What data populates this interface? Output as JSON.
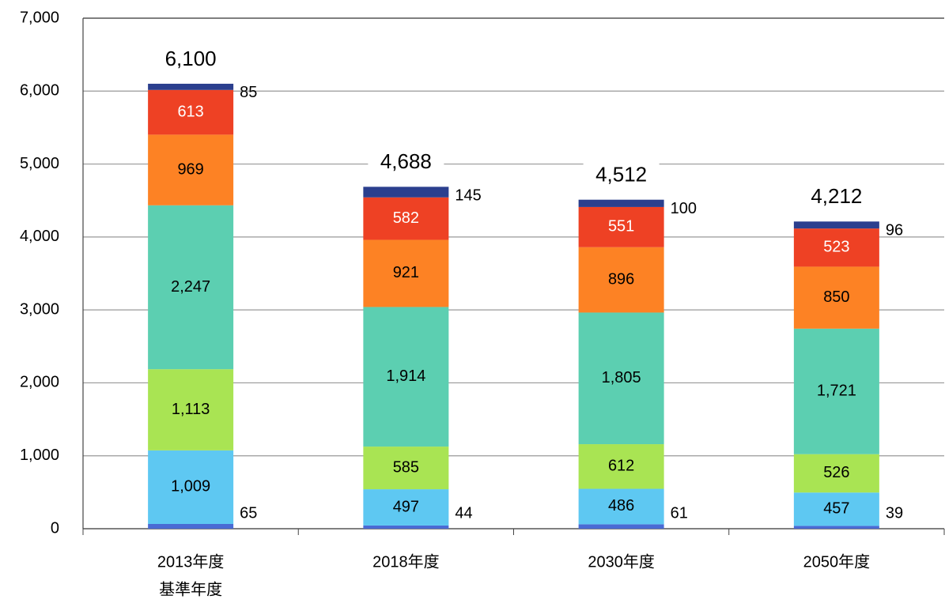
{
  "chart_data": {
    "type": "stacked-bar",
    "categories": [
      "2013年度",
      "2018年度",
      "2030年度",
      "2050年度"
    ],
    "category_sublabels": [
      "基準年度",
      null,
      null,
      null
    ],
    "series": [
      {
        "color": "#4a6bd4",
        "label_color": "#000000",
        "label_position": "outside-bottom",
        "values": [
          65,
          44,
          61,
          39
        ],
        "value_labels": [
          "65",
          "44",
          "61",
          "39"
        ]
      },
      {
        "color": "#5ec8f2",
        "label_color": "#000000",
        "label_position": "inside",
        "values": [
          1009,
          497,
          486,
          457
        ],
        "value_labels": [
          "1,009",
          "497",
          "486",
          "457"
        ]
      },
      {
        "color": "#a9e453",
        "label_color": "#000000",
        "label_position": "inside",
        "values": [
          1113,
          585,
          612,
          526
        ],
        "value_labels": [
          "1,113",
          "585",
          "612",
          "526"
        ]
      },
      {
        "color": "#5ccfb1",
        "label_color": "#000000",
        "label_position": "inside",
        "values": [
          2247,
          1914,
          1805,
          1721
        ],
        "value_labels": [
          "2,247",
          "1,914",
          "1,805",
          "1,721"
        ]
      },
      {
        "color": "#fd8224",
        "label_color": "#000000",
        "label_position": "inside",
        "values": [
          969,
          921,
          896,
          850
        ],
        "value_labels": [
          "969",
          "921",
          "896",
          "850"
        ]
      },
      {
        "color": "#ee4124",
        "label_color": "#ffffff",
        "label_position": "inside",
        "values": [
          613,
          582,
          551,
          523
        ],
        "value_labels": [
          "613",
          "582",
          "551",
          "523"
        ]
      },
      {
        "color": "#2b3f8e",
        "label_color": "#000000",
        "label_position": "outside-top",
        "values": [
          85,
          145,
          100,
          96
        ],
        "value_labels": [
          "85",
          "145",
          "100",
          "96"
        ]
      }
    ],
    "totals": [
      6100,
      4688,
      4512,
      4212
    ],
    "total_labels": [
      "6,100",
      "4,688",
      "4,512",
      "4,212"
    ],
    "ylim": [
      0,
      7000
    ],
    "yticks": [
      0,
      {
        "value": 1000,
        "label": "1,000"
      },
      {
        "value": 2000,
        "label": "2,000"
      },
      {
        "value": 3000,
        "label": "3,000"
      },
      {
        "value": 4000,
        "label": "4,000"
      },
      {
        "value": 5000,
        "label": "5,000"
      },
      {
        "value": 6000,
        "label": "6,000"
      },
      {
        "value": 7000,
        "label": "7,000"
      }
    ],
    "grid": true
  }
}
